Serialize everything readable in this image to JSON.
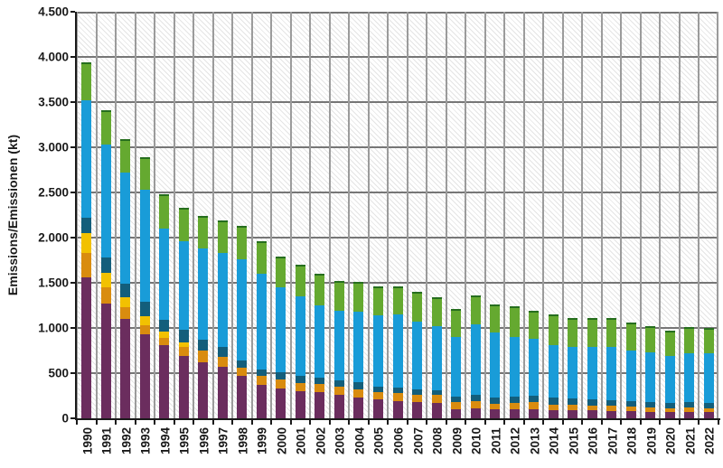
{
  "chart_data": {
    "type": "bar",
    "stacked": true,
    "title": "",
    "xlabel": "",
    "ylabel": "Emissions/Emissionen (kt)",
    "ylim": [
      0,
      4500
    ],
    "ytick_interval": 500,
    "ytick_labels_top_down": [
      "4.500",
      "4.000",
      "3.500",
      "3.000",
      "2.500",
      "2.000",
      "1.500",
      "1.000",
      "500",
      "0"
    ],
    "grid": {
      "horizontal": true,
      "vertical": true,
      "plot_background": "white with light diagonal hatch"
    },
    "legend": "none",
    "categories": [
      "1990",
      "1991",
      "1992",
      "1993",
      "1994",
      "1995",
      "1996",
      "1997",
      "1998",
      "1999",
      "2000",
      "2001",
      "2002",
      "2003",
      "2004",
      "2005",
      "2006",
      "2007",
      "2008",
      "2009",
      "2010",
      "2011",
      "2012",
      "2013",
      "2014",
      "2015",
      "2016",
      "2017",
      "2018",
      "2019",
      "2020",
      "2021",
      "2022"
    ],
    "series": [
      {
        "name": "series-purple",
        "color": "#6b2d5e",
        "values": [
          1560,
          1270,
          1100,
          930,
          810,
          695,
          625,
          570,
          470,
          370,
          335,
          305,
          295,
          260,
          235,
          210,
          195,
          180,
          170,
          100,
          110,
          105,
          105,
          105,
          90,
          90,
          90,
          85,
          80,
          75,
          70,
          75,
          70
        ]
      },
      {
        "name": "series-orange",
        "color": "#d98c0f",
        "values": [
          270,
          180,
          130,
          100,
          80,
          100,
          130,
          110,
          95,
          100,
          100,
          90,
          90,
          90,
          90,
          85,
          90,
          85,
          90,
          80,
          80,
          60,
          65,
          75,
          65,
          65,
          55,
          55,
          50,
          50,
          45,
          45,
          45
        ]
      },
      {
        "name": "series-yellow",
        "color": "#f2c101",
        "values": [
          220,
          160,
          110,
          100,
          70,
          50,
          0,
          0,
          0,
          0,
          0,
          0,
          0,
          0,
          0,
          0,
          0,
          0,
          0,
          0,
          0,
          0,
          0,
          0,
          0,
          0,
          0,
          0,
          0,
          0,
          0,
          0,
          0
        ]
      },
      {
        "name": "series-teal",
        "color": "#135e7b",
        "values": [
          170,
          170,
          150,
          160,
          130,
          140,
          120,
          110,
          80,
          75,
          80,
          75,
          65,
          75,
          75,
          60,
          60,
          60,
          55,
          65,
          75,
          70,
          75,
          75,
          75,
          70,
          70,
          65,
          60,
          55,
          55,
          60,
          55
        ]
      },
      {
        "name": "series-lightblue",
        "color": "#199cd8",
        "values": [
          1300,
          1250,
          1230,
          1240,
          1010,
          980,
          1005,
          1040,
          1120,
          1060,
          940,
          885,
          800,
          765,
          785,
          785,
          810,
          750,
          710,
          660,
          775,
          720,
          655,
          630,
          585,
          570,
          575,
          590,
          565,
          550,
          525,
          545,
          555
        ]
      },
      {
        "name": "series-green",
        "color": "#65a930",
        "values": [
          420,
          380,
          370,
          360,
          380,
          365,
          360,
          360,
          365,
          360,
          335,
          345,
          350,
          330,
          325,
          320,
          310,
          330,
          320,
          310,
          320,
          305,
          340,
          310,
          335,
          320,
          320,
          315,
          305,
          295,
          280,
          290,
          275
        ]
      }
    ],
    "totals": [
      3940,
      3410,
      3090,
      2890,
      2480,
      2330,
      2240,
      2190,
      2130,
      1965,
      1790,
      1700,
      1600,
      1520,
      1510,
      1460,
      1465,
      1405,
      1345,
      1215,
      1360,
      1260,
      1240,
      1195,
      1150,
      1115,
      1110,
      1110,
      1060,
      1025,
      975,
      1015,
      1000
    ]
  }
}
